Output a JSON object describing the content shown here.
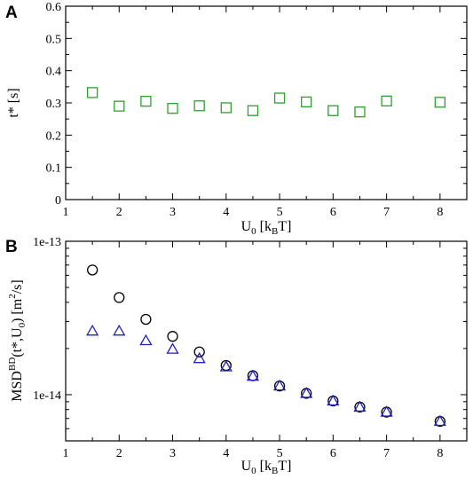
{
  "panels": [
    {
      "letter": "A"
    },
    {
      "letter": "B"
    }
  ],
  "chart_data": [
    {
      "type": "scatter",
      "panel": "A",
      "xlabel": "U0 [kBT]",
      "ylabel": "t* [s]",
      "xlim": [
        1,
        8.5
      ],
      "ylim": [
        0,
        0.6
      ],
      "x_ticks": [
        "1",
        "2",
        "3",
        "4",
        "5",
        "6",
        "7",
        "8"
      ],
      "y_ticks": [
        "0",
        "0.1",
        "0.2",
        "0.3",
        "0.4",
        "0.5",
        "0.6"
      ],
      "series": [
        {
          "marker": "square",
          "color": "#2ca02c",
          "x": [
            1.5,
            2,
            2.5,
            3,
            3.5,
            4,
            4.5,
            5,
            5.5,
            6,
            6.5,
            7,
            8
          ],
          "y": [
            0.332,
            0.29,
            0.305,
            0.283,
            0.291,
            0.285,
            0.276,
            0.315,
            0.303,
            0.276,
            0.272,
            0.306,
            0.302
          ]
        }
      ]
    },
    {
      "type": "scatter",
      "panel": "B",
      "xlabel": "U0 [kBT]",
      "ylabel": "MSDBD(t*,U0) [m2/s]",
      "xlim": [
        1,
        8.5
      ],
      "ylim": [
        5e-15,
        1e-13
      ],
      "yscale": "log",
      "x_ticks": [
        "1",
        "2",
        "3",
        "4",
        "5",
        "6",
        "7",
        "8"
      ],
      "y_ticks": [
        "1e-13",
        "1e-14"
      ],
      "series": [
        {
          "marker": "circle",
          "color": "#000000",
          "x": [
            1.5,
            2,
            2.5,
            3,
            3.5,
            4,
            4.5,
            5,
            5.5,
            6,
            6.5,
            7,
            8
          ],
          "y": [
            6.5e-14,
            4.3e-14,
            3.1e-14,
            2.4e-14,
            1.9e-14,
            1.55e-14,
            1.33e-14,
            1.14e-14,
            1.02e-14,
            9.1e-15,
            8.3e-15,
            7.7e-15,
            6.7e-15
          ]
        },
        {
          "marker": "triangle",
          "color": "#2020c0",
          "x": [
            1.5,
            2,
            2.5,
            3,
            3.5,
            4,
            4.5,
            5,
            5.5,
            6,
            6.5,
            7,
            8
          ],
          "y": [
            2.6e-14,
            2.6e-14,
            2.25e-14,
            1.98e-14,
            1.72e-14,
            1.52e-14,
            1.32e-14,
            1.14e-14,
            1.02e-14,
            9.1e-15,
            8.3e-15,
            7.7e-15,
            6.7e-15
          ]
        }
      ]
    }
  ]
}
